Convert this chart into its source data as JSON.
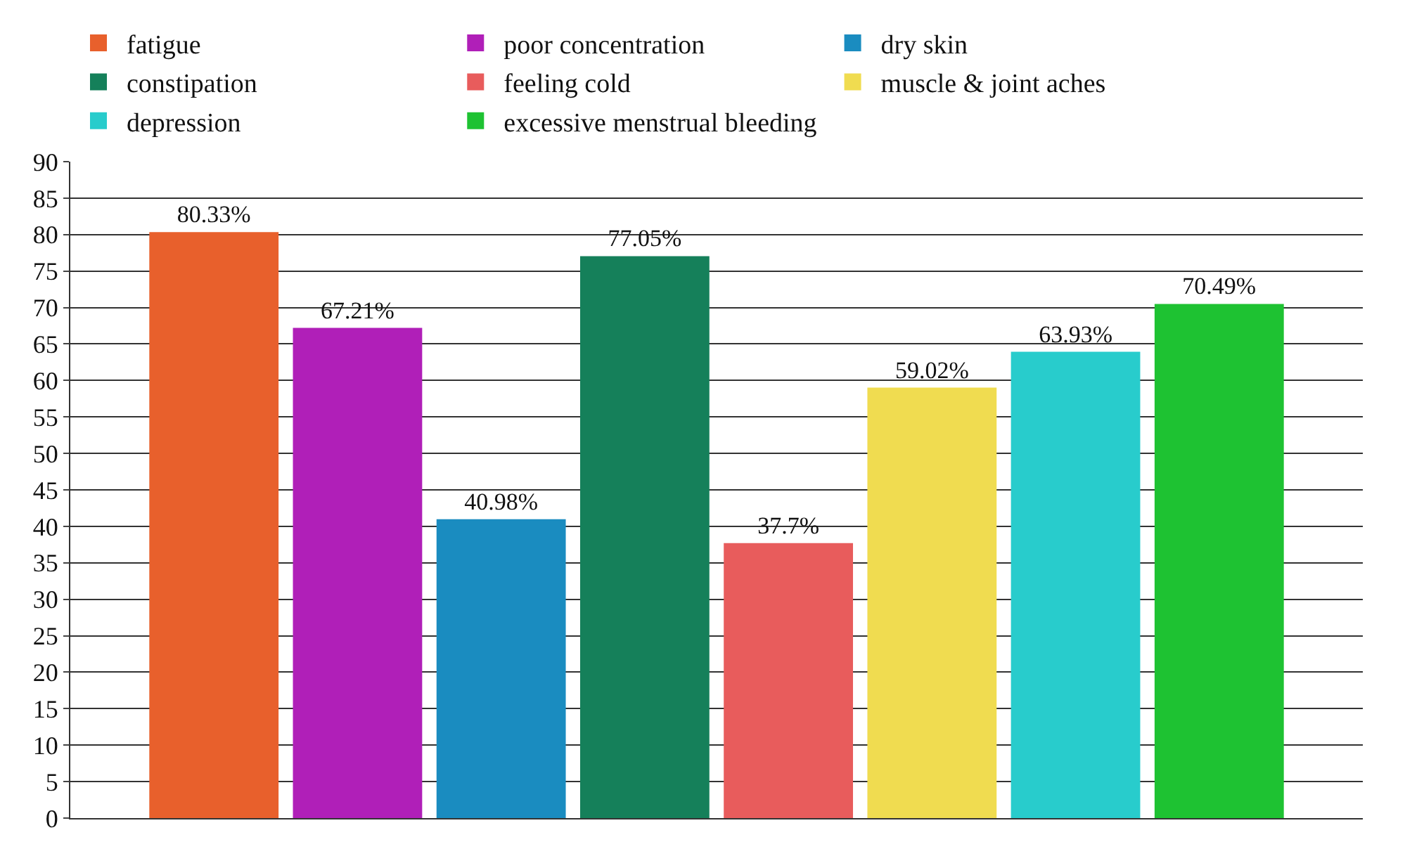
{
  "chart_data": {
    "type": "bar",
    "categories": [
      null,
      null,
      null,
      null,
      null,
      null,
      null,
      null
    ],
    "series": [
      {
        "name": "fatigue",
        "color": "#e8602c",
        "values": [
          80.33,
          null,
          null,
          null,
          null,
          null,
          null,
          null
        ],
        "value_labels": [
          "80.33%",
          null,
          null,
          null,
          null,
          null,
          null,
          null
        ]
      },
      {
        "name": "poor concentration",
        "color": "#b01fb8",
        "values": [
          null,
          67.21,
          null,
          null,
          null,
          null,
          null,
          null
        ],
        "value_labels": [
          null,
          "67.21%",
          null,
          null,
          null,
          null,
          null,
          null
        ]
      },
      {
        "name": "dry skin",
        "color": "#1a8cc0",
        "values": [
          null,
          null,
          40.98,
          null,
          null,
          null,
          null,
          null
        ],
        "value_labels": [
          null,
          null,
          "40.98%",
          null,
          null,
          null,
          null,
          null
        ]
      },
      {
        "name": "constipation",
        "color": "#15805a",
        "values": [
          null,
          null,
          null,
          77.05,
          null,
          null,
          null,
          null
        ],
        "value_labels": [
          null,
          null,
          null,
          "77.05%",
          null,
          null,
          null,
          null
        ]
      },
      {
        "name": "feeling cold",
        "color": "#e85c5c",
        "values": [
          null,
          null,
          null,
          null,
          37.7,
          null,
          null,
          null
        ],
        "value_labels": [
          null,
          null,
          null,
          null,
          "37.7%",
          null,
          null,
          null
        ]
      },
      {
        "name": "muscle & joint aches",
        "color": "#f0dc50",
        "values": [
          null,
          null,
          null,
          null,
          null,
          59.02,
          null,
          null
        ],
        "value_labels": [
          null,
          null,
          null,
          null,
          null,
          "59.02%",
          null,
          null
        ]
      },
      {
        "name": "depression",
        "color": "#28cccc",
        "values": [
          null,
          null,
          null,
          null,
          null,
          null,
          63.93,
          null
        ],
        "value_labels": [
          null,
          null,
          null,
          null,
          null,
          null,
          "63.93%",
          null
        ]
      },
      {
        "name": "excessive menstrual bleeding",
        "color": "#1ec232",
        "values": [
          null,
          null,
          null,
          null,
          null,
          null,
          null,
          70.49
        ],
        "value_labels": [
          null,
          null,
          null,
          null,
          null,
          null,
          null,
          "70.49%"
        ]
      }
    ],
    "ylim": [
      0,
      90
    ],
    "yticks": [
      0,
      5,
      10,
      15,
      20,
      25,
      30,
      35,
      40,
      45,
      50,
      55,
      60,
      65,
      70,
      75,
      80,
      85,
      90
    ],
    "grid": "y",
    "legend": "top",
    "tick_labels": "y"
  }
}
